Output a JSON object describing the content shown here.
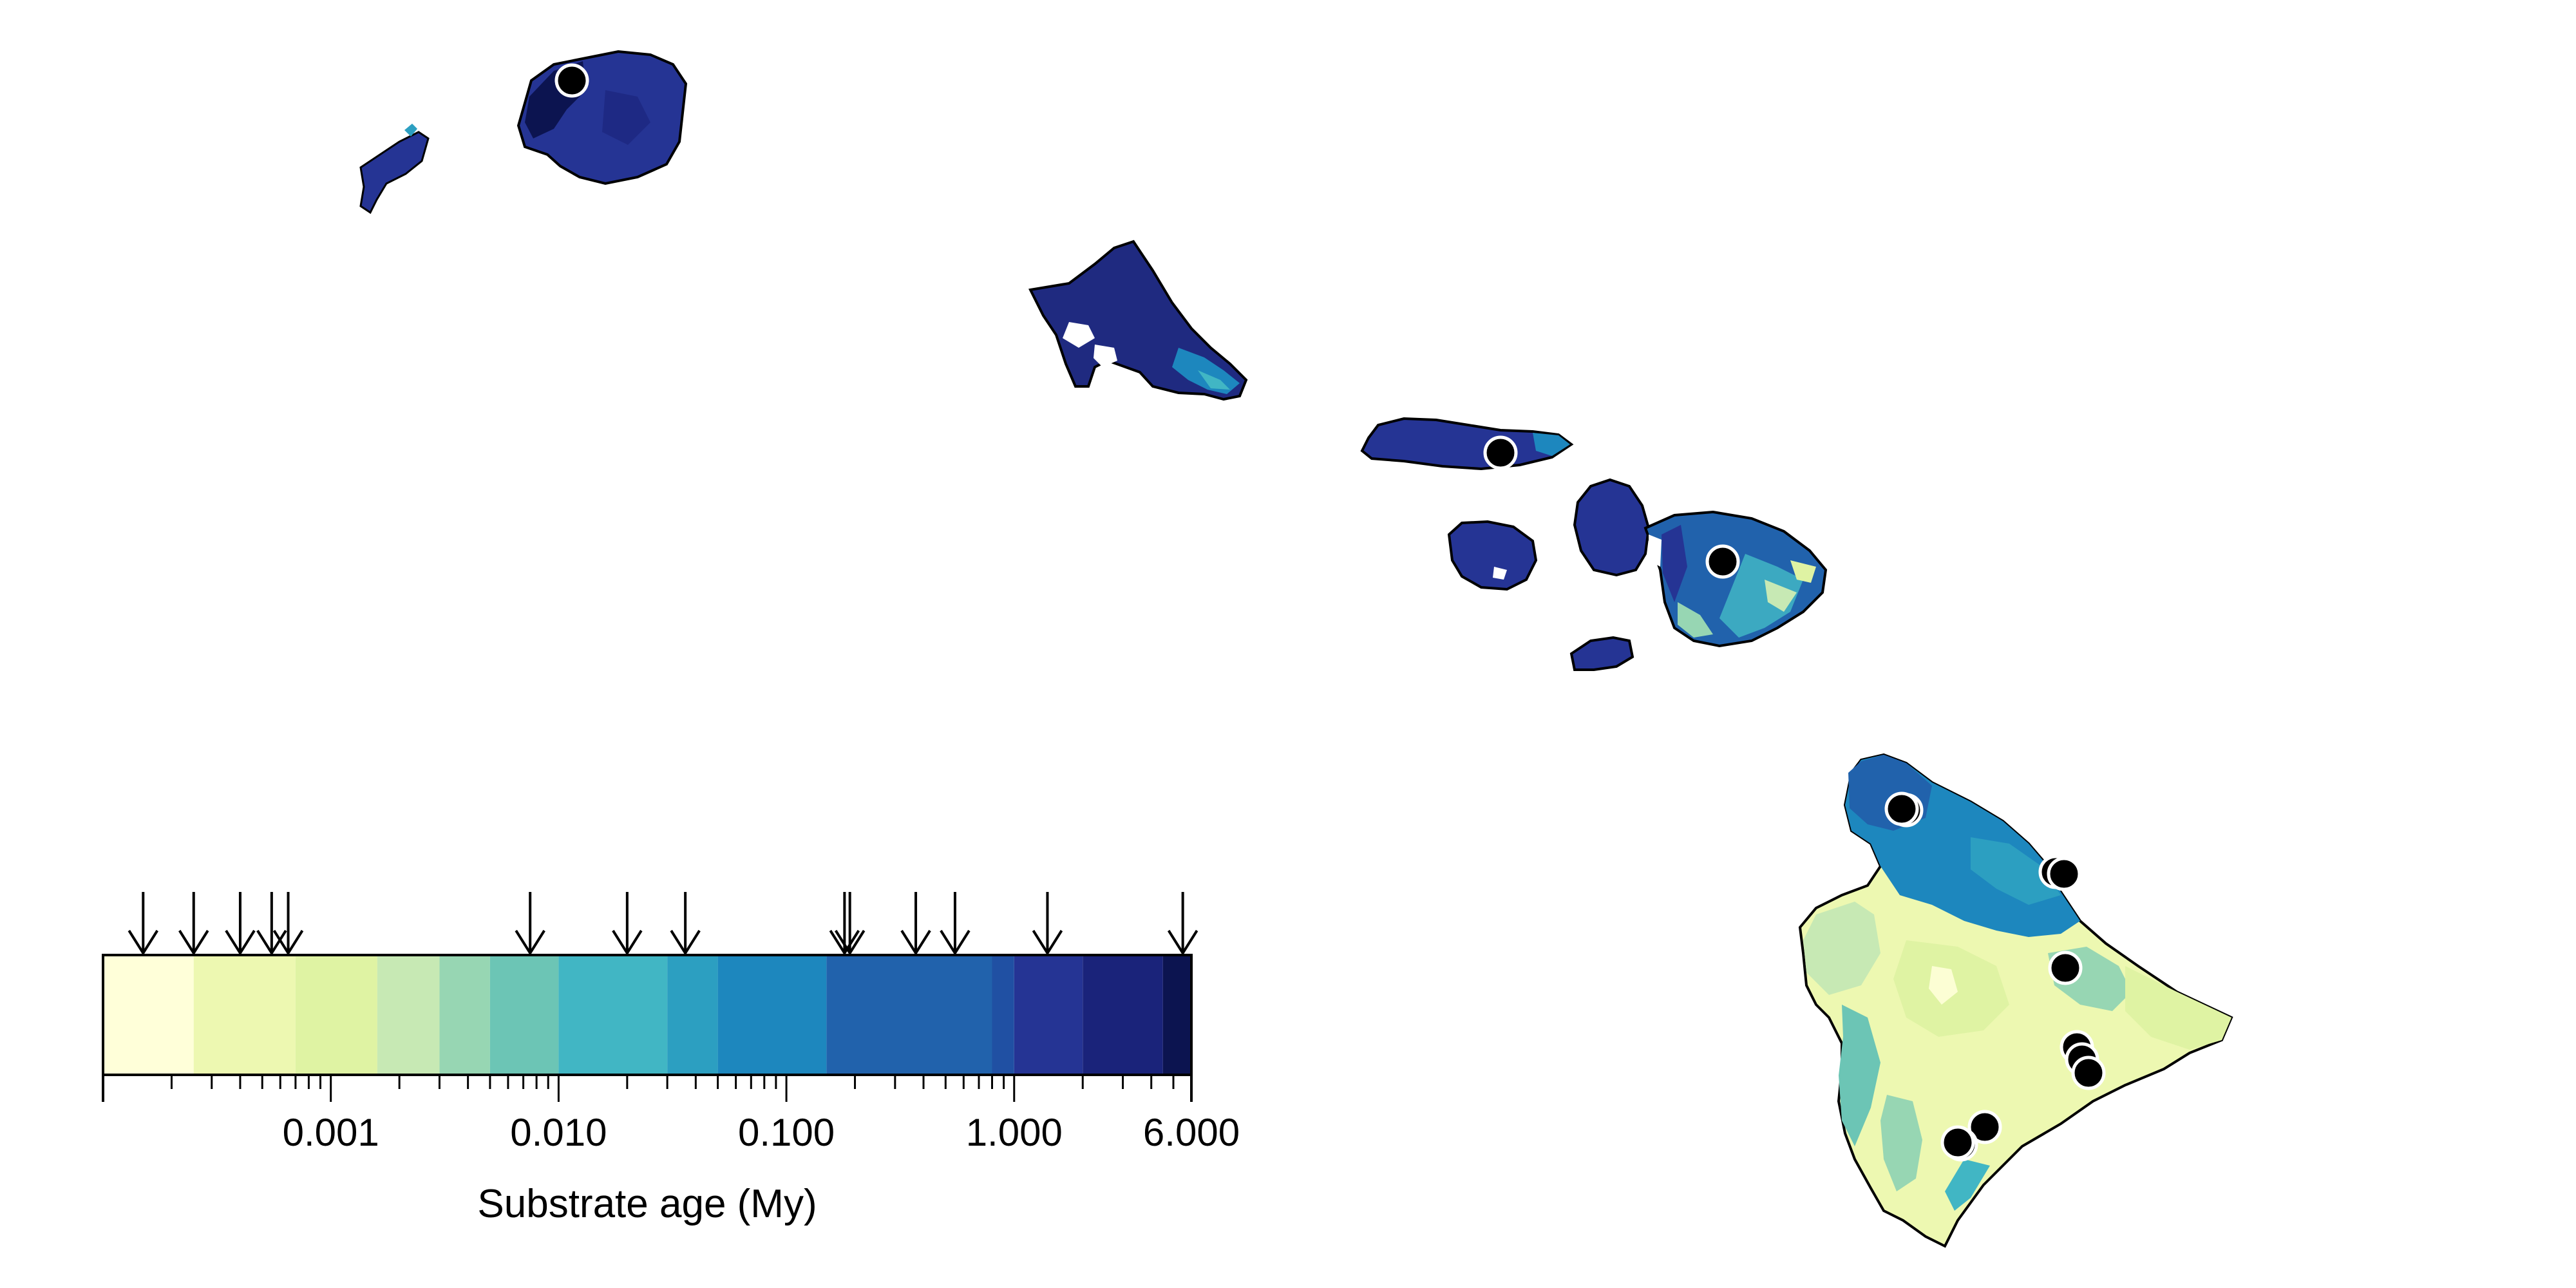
{
  "legend": {
    "title": "Substrate age (My)",
    "tick_labels": [
      "0.001",
      "0.010",
      "0.100",
      "1.000",
      "6.000"
    ],
    "scale": "log",
    "range_my": [
      0.0001,
      6.0
    ],
    "color_classes": [
      {
        "from": 0.0001,
        "to": 0.00025,
        "color": "#ffffd9"
      },
      {
        "from": 0.00025,
        "to": 0.0007,
        "color": "#edf8b1"
      },
      {
        "from": 0.0007,
        "to": 0.0016,
        "color": "#dff3a3"
      },
      {
        "from": 0.0016,
        "to": 0.003,
        "color": "#c7e9b4"
      },
      {
        "from": 0.003,
        "to": 0.005,
        "color": "#97d6b3"
      },
      {
        "from": 0.005,
        "to": 0.01,
        "color": "#6cc5b5"
      },
      {
        "from": 0.01,
        "to": 0.03,
        "color": "#41b6c4"
      },
      {
        "from": 0.03,
        "to": 0.05,
        "color": "#2c9fc1"
      },
      {
        "from": 0.05,
        "to": 0.15,
        "color": "#1d87be"
      },
      {
        "from": 0.15,
        "to": 0.8,
        "color": "#2162ac"
      },
      {
        "from": 0.8,
        "to": 1.0,
        "color": "#2050a3"
      },
      {
        "from": 1.0,
        "to": 2.0,
        "color": "#253494"
      },
      {
        "from": 2.0,
        "to": 4.5,
        "color": "#1a237a"
      },
      {
        "from": 4.5,
        "to": 6.0,
        "color": "#0c1450"
      }
    ],
    "site_ages_my": [
      0.00015,
      0.00025,
      0.0004,
      0.00055,
      0.00065,
      0.0075,
      0.02,
      0.036,
      0.18,
      0.19,
      0.37,
      0.55,
      1.4,
      5.5
    ]
  },
  "islands": [
    {
      "name": "Niihau",
      "color": "#253494"
    },
    {
      "name": "Kauai",
      "color": "#253494"
    },
    {
      "name": "Oahu",
      "color": "#1f2a80"
    },
    {
      "name": "Molokai",
      "color": "#253494"
    },
    {
      "name": "Lanai",
      "color": "#253494"
    },
    {
      "name": "West Maui",
      "color": "#253494"
    },
    {
      "name": "East Maui",
      "color": "#2162ac"
    },
    {
      "name": "Kahoolawe",
      "color": "#253494"
    },
    {
      "name": "Hawaii",
      "color": "#edf8b1"
    }
  ],
  "sites": [
    {
      "island": "Kauai"
    },
    {
      "island": "Molokai"
    },
    {
      "island": "East Maui"
    },
    {
      "island": "Hawaii"
    },
    {
      "island": "Hawaii"
    },
    {
      "island": "Hawaii"
    },
    {
      "island": "Hawaii"
    },
    {
      "island": "Hawaii"
    },
    {
      "island": "Hawaii"
    },
    {
      "island": "Hawaii"
    },
    {
      "island": "Hawaii"
    },
    {
      "island": "Hawaii"
    },
    {
      "island": "Hawaii"
    },
    {
      "island": "Hawaii"
    }
  ],
  "colors": {
    "site_marker": "#000000",
    "site_outline": "#ffffff",
    "coastline": "#000000"
  }
}
